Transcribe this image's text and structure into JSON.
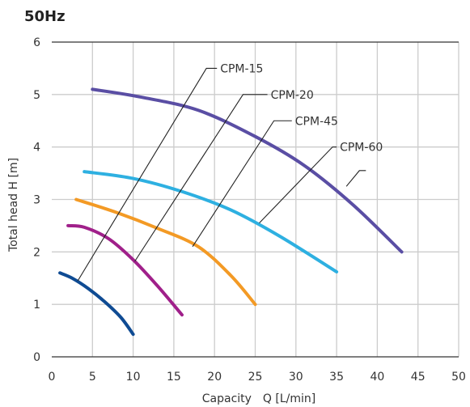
{
  "chart_data": {
    "type": "line",
    "title": "50Hz",
    "xlabel": "Capacity　Q [L/min]",
    "ylabel": "Total head H [m]",
    "xlim": [
      0,
      50
    ],
    "ylim": [
      0,
      6
    ],
    "x_ticks": [
      "0",
      "5",
      "10",
      "15",
      "20",
      "25",
      "30",
      "35",
      "40",
      "45",
      "50"
    ],
    "y_ticks": [
      "0",
      "1",
      "2",
      "3",
      "4",
      "5",
      "6"
    ],
    "grid": true,
    "series": [
      {
        "name": "CPM-15",
        "color": "#0f4b93",
        "points": [
          [
            1,
            1.6
          ],
          [
            2.5,
            1.5
          ],
          [
            4.5,
            1.3
          ],
          [
            6.5,
            1.05
          ],
          [
            8.5,
            0.75
          ],
          [
            10,
            0.43
          ]
        ],
        "leader": {
          "x1": 3.2,
          "y1": 1.45,
          "x2": 19,
          "y2": 5.5,
          "x3": 20.3,
          "y3": 5.5
        }
      },
      {
        "name": "CPM-20",
        "color": "#a0208a",
        "points": [
          [
            2,
            2.5
          ],
          [
            4,
            2.47
          ],
          [
            7,
            2.25
          ],
          [
            10,
            1.85
          ],
          [
            13,
            1.35
          ],
          [
            16,
            0.8
          ]
        ],
        "leader": {
          "x1": 10.2,
          "y1": 1.82,
          "x2": 23.5,
          "y2": 5.0,
          "x3": 26.5,
          "y3": 5.0
        }
      },
      {
        "name": "CPM-45",
        "color": "#f39a25",
        "points": [
          [
            3,
            3.0
          ],
          [
            8,
            2.75
          ],
          [
            13,
            2.45
          ],
          [
            18,
            2.1
          ],
          [
            22,
            1.55
          ],
          [
            25,
            1.0
          ]
        ],
        "leader": {
          "x1": 17.3,
          "y1": 2.1,
          "x2": 27.3,
          "y2": 4.5,
          "x3": 29.5,
          "y3": 4.5
        }
      },
      {
        "name": "CPM-60",
        "color": "#2eb0e1",
        "points": [
          [
            4,
            3.53
          ],
          [
            10,
            3.4
          ],
          [
            16,
            3.15
          ],
          [
            22,
            2.8
          ],
          [
            28,
            2.3
          ],
          [
            35,
            1.62
          ]
        ],
        "leader": {
          "x1": 25.5,
          "y1": 2.55,
          "x2": 34.5,
          "y2": 4.0,
          "x3": 35.0,
          "y3": 4.0
        }
      },
      {
        "name": "",
        "color": "#5a4ea4",
        "points": [
          [
            5,
            5.1
          ],
          [
            11,
            4.95
          ],
          [
            18,
            4.7
          ],
          [
            25,
            4.2
          ],
          [
            31,
            3.65
          ],
          [
            37,
            2.9
          ],
          [
            43,
            2.0
          ]
        ],
        "leader": {
          "x1": 36.2,
          "y1": 3.25,
          "x2": 37.8,
          "y2": 3.55,
          "x3": 38.6,
          "y3": 3.55
        }
      }
    ]
  }
}
